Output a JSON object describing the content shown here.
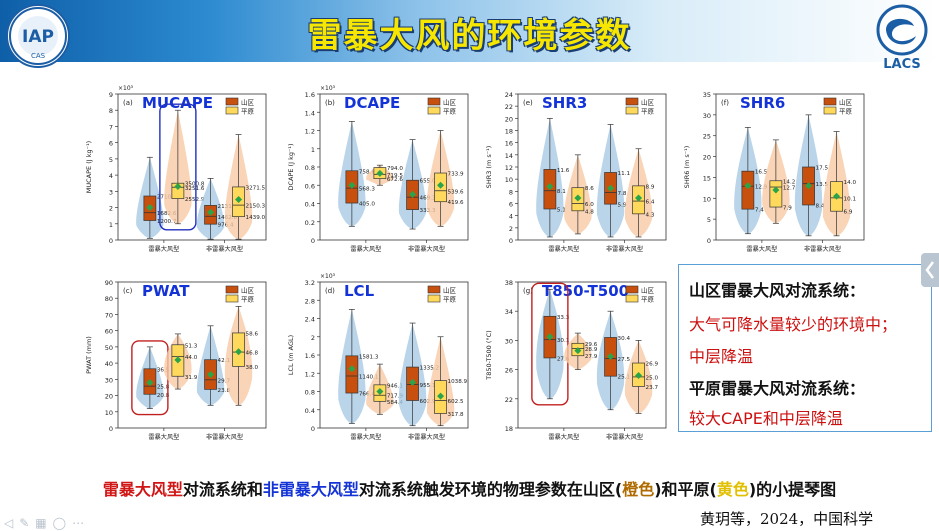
{
  "slide": {
    "title": "雷暴大风的环境参数",
    "logo_left_text": "IAP",
    "logo_left_sub": "CAS",
    "logo_right_text": "LACS",
    "caption_parts": [
      "雷暴大风型",
      "对流系统和",
      "非雷暴大风型",
      "对流系统触发环境的物理参数在山区(",
      "橙色",
      ")和平原(",
      "黄色",
      ")的小提琴图"
    ],
    "citation": "黄玥等，2024，中国科学"
  },
  "summary": {
    "mountain_heading": "山区雷暴大风对流系统：",
    "mountain_line1": "大气可降水量较少的环境中；",
    "mountain_line2": "中层降温",
    "plain_heading": "平原雷暴大风对流系统：",
    "plain_line1": "较大CAPE和中层降温"
  },
  "legend": {
    "mountain": "山区",
    "plain": "平原"
  },
  "colors": {
    "mountain": "#c8500f",
    "plain": "#ffd95c",
    "violin_left": "#a9c9e3",
    "violin_right": "#f8c9a4",
    "mean": "#2aa44a",
    "title_yellow": "#f6e600",
    "highlight_red": "#c02020",
    "highlight_blue": "#2030c0"
  },
  "chart_data": [
    {
      "type": "violin",
      "panel": "(a)",
      "title": "MUCAPE",
      "ylabel": "MUCAPE (J kg⁻¹)",
      "yscale_note": "×10³",
      "ylim": [
        0,
        9
      ],
      "yticks": [
        0,
        1,
        2,
        3,
        4,
        5,
        6,
        7,
        8,
        9
      ],
      "categories": [
        "雷暴大风型",
        "非雷暴大风型"
      ],
      "series": [
        {
          "name": "山区",
          "boxes": [
            {
              "q1": 1.2007,
              "median": 1.6826,
              "q3": 2.7109,
              "min": 0.1,
              "max": 5.1,
              "mean": 2.0
            },
            {
              "q1": 0.9764,
              "median": 1.4628,
              "q3": 2.1315,
              "min": 0.05,
              "max": 3.8,
              "mean": 1.7
            }
          ]
        },
        {
          "name": "平原",
          "boxes": [
            {
              "q1": 2.5529,
              "median": 3.2516,
              "q3": 3.5008,
              "min": 1.0,
              "max": 8.0,
              "mean": 3.3
            },
            {
              "q1": 1.439,
              "median": 2.1503,
              "q3": 3.2715,
              "min": 0.05,
              "max": 6.5,
              "mean": 2.5
            }
          ]
        }
      ],
      "labels": [
        "2710.8",
        "1682.6",
        "1200.7",
        "3500.8",
        "3251.6",
        "2552.9",
        "2131.5",
        "1462.8",
        "976.4",
        "3271.5",
        "2150.3",
        "1439.0"
      ]
    },
    {
      "type": "violin",
      "panel": "(b)",
      "title": "DCAPE",
      "ylabel": "DCAPE (J kg⁻¹)",
      "yscale_note": "×10³",
      "ylim": [
        0,
        1.6
      ],
      "yticks": [
        0,
        0.2,
        0.4,
        0.6,
        0.8,
        1.0,
        1.2,
        1.4,
        1.6
      ],
      "categories": [
        "雷暴大风型",
        "非雷暴大风型"
      ],
      "series": [
        {
          "name": "山区",
          "boxes": [
            {
              "q1": 0.405,
              "median": 0.5683,
              "q3": 0.7586,
              "min": 0.15,
              "max": 1.3,
              "mean": 0.6
            },
            {
              "q1": 0.3333,
              "median": 0.4693,
              "q3": 0.655,
              "min": 0.12,
              "max": 1.1,
              "mean": 0.5
            }
          ]
        },
        {
          "name": "平原",
          "boxes": [
            {
              "q1": 0.6726,
              "median": 0.7195,
              "q3": 0.794,
              "min": 0.6,
              "max": 0.82,
              "mean": 0.73
            },
            {
              "q1": 0.4196,
              "median": 0.5396,
              "q3": 0.7339,
              "min": 0.15,
              "max": 1.2,
              "mean": 0.6
            }
          ]
        }
      ],
      "labels": [
        "758.6",
        "568.3",
        "405.0",
        "794.0",
        "719.5",
        "672.6",
        "655.0",
        "469.3",
        "333.3",
        "733.9",
        "539.6",
        "419.6"
      ]
    },
    {
      "type": "violin",
      "panel": "(e)",
      "title": "SHR3",
      "ylabel": "SHR3 (m s⁻¹)",
      "ylim": [
        0,
        24
      ],
      "yticks": [
        0,
        2,
        4,
        6,
        8,
        10,
        12,
        14,
        16,
        18,
        20,
        22,
        24
      ],
      "categories": [
        "雷暴大风型",
        "非雷暴大风型"
      ],
      "series": [
        {
          "name": "山区",
          "boxes": [
            {
              "q1": 5.1,
              "median": 8.1,
              "q3": 11.6,
              "min": 0.5,
              "max": 20,
              "mean": 8.8
            },
            {
              "q1": 5.9,
              "median": 7.8,
              "q3": 11.1,
              "min": 0.5,
              "max": 19,
              "mean": 8.5
            }
          ]
        },
        {
          "name": "平原",
          "boxes": [
            {
              "q1": 4.8,
              "median": 6.0,
              "q3": 8.6,
              "min": 1.0,
              "max": 14,
              "mean": 6.9
            },
            {
              "q1": 4.3,
              "median": 6.4,
              "q3": 8.9,
              "min": 0.5,
              "max": 15,
              "mean": 6.9
            }
          ]
        }
      ],
      "labels": [
        "11.6",
        "8.1",
        "5.1",
        "8.6",
        "6.0",
        "4.8",
        "11.1",
        "7.8",
        "5.9",
        "8.9",
        "6.4",
        "4.3"
      ]
    },
    {
      "type": "violin",
      "panel": "(f)",
      "title": "SHR6",
      "ylabel": "SHR6 (m s⁻¹)",
      "ylim": [
        0,
        35
      ],
      "yticks": [
        0,
        5,
        10,
        15,
        20,
        25,
        30,
        35
      ],
      "categories": [
        "雷暴大风型",
        "非雷暴大风型"
      ],
      "series": [
        {
          "name": "山区",
          "boxes": [
            {
              "q1": 7.4,
              "median": 12.9,
              "q3": 16.5,
              "min": 1.5,
              "max": 27,
              "mean": 13
            },
            {
              "q1": 8.4,
              "median": 13.5,
              "q3": 17.5,
              "min": 1,
              "max": 30,
              "mean": 13
            }
          ]
        },
        {
          "name": "平原",
          "boxes": [
            {
              "q1": 7.9,
              "median": 12.7,
              "q3": 14.2,
              "min": 4,
              "max": 24,
              "mean": 12
            },
            {
              "q1": 6.9,
              "median": 10.1,
              "q3": 14.0,
              "min": 1,
              "max": 26,
              "mean": 10.5
            }
          ]
        }
      ],
      "labels": [
        "16.5",
        "12.9",
        "7.4",
        "14.2",
        "12.7",
        "7.9",
        "17.5",
        "13.5",
        "8.4",
        "14.0",
        "10.1",
        "6.9"
      ]
    },
    {
      "type": "violin",
      "panel": "(c)",
      "title": "PWAT",
      "ylabel": "PWAT (mm)",
      "ylim": [
        0,
        90
      ],
      "yticks": [
        0,
        10,
        20,
        30,
        40,
        50,
        60,
        70,
        80,
        90
      ],
      "categories": [
        "雷暴大风型",
        "非雷暴大风型"
      ],
      "series": [
        {
          "name": "山区",
          "boxes": [
            {
              "q1": 20.8,
              "median": 25.8,
              "q3": 36.5,
              "min": 12,
              "max": 50,
              "mean": 28
            },
            {
              "q1": 23.8,
              "median": 29.7,
              "q3": 42.1,
              "min": 14,
              "max": 63,
              "mean": 33
            }
          ]
        },
        {
          "name": "平原",
          "boxes": [
            {
              "q1": 31.9,
              "median": 44.0,
              "q3": 51.3,
              "min": 24,
              "max": 58,
              "mean": 42
            },
            {
              "q1": 38.0,
              "median": 46.8,
              "q3": 58.6,
              "min": 14,
              "max": 75,
              "mean": 47
            }
          ]
        }
      ],
      "labels": [
        "36.5",
        "25.8",
        "20.8",
        "51.3",
        "44.0",
        "31.9",
        "42.1",
        "29.7",
        "23.8",
        "58.6",
        "46.8",
        "38.0"
      ]
    },
    {
      "type": "violin",
      "panel": "(d)",
      "title": "LCL",
      "ylabel": "LCL (m AGL)",
      "yscale_note": "×10³",
      "ylim": [
        0,
        3.2
      ],
      "yticks": [
        0,
        0.4,
        0.8,
        1.2,
        1.6,
        2.0,
        2.4,
        2.8,
        3.2
      ],
      "categories": [
        "雷暴大风型",
        "非雷暴大风型"
      ],
      "series": [
        {
          "name": "山区",
          "boxes": [
            {
              "q1": 0.7664,
              "median": 1.1401,
              "q3": 1.5813,
              "min": 0.1,
              "max": 2.6,
              "mean": 1.3
            },
            {
              "q1": 0.6029,
              "median": 0.9551,
              "q3": 1.3352,
              "min": 0.05,
              "max": 2.3,
              "mean": 1.0
            }
          ]
        },
        {
          "name": "平原",
          "boxes": [
            {
              "q1": 0.5844,
              "median": 0.7179,
              "q3": 0.9461,
              "min": 0.3,
              "max": 1.4,
              "mean": 0.8
            },
            {
              "q1": 0.3178,
              "median": 0.6025,
              "q3": 1.0389,
              "min": 0.05,
              "max": 2.0,
              "mean": 0.7
            }
          ]
        }
      ],
      "labels": [
        "1581.3",
        "1140.1",
        "766.4",
        "946.1",
        "717.9",
        "584.4",
        "1335.2",
        "955.1",
        "602.9",
        "1038.9",
        "602.5",
        "317.8"
      ]
    },
    {
      "type": "violin",
      "panel": "(g)",
      "title": "T850-T500",
      "ylabel": "T850-T500 (°C)",
      "ylim": [
        18,
        38
      ],
      "yticks": [
        18,
        22,
        26,
        30,
        34,
        38
      ],
      "categories": [
        "雷暴大风型",
        "非雷暴大风型"
      ],
      "series": [
        {
          "name": "山区",
          "boxes": [
            {
              "q1": 27.6,
              "median": 30.1,
              "q3": 33.3,
              "min": 22,
              "max": 37,
              "mean": 30.5
            },
            {
              "q1": 25.1,
              "median": 27.5,
              "q3": 30.4,
              "min": 20.5,
              "max": 34,
              "mean": 27.8
            }
          ]
        },
        {
          "name": "平原",
          "boxes": [
            {
              "q1": 27.9,
              "median": 28.9,
              "q3": 29.6,
              "min": 26,
              "max": 31,
              "mean": 28.6
            },
            {
              "q1": 23.7,
              "median": 25.0,
              "q3": 26.9,
              "min": 20,
              "max": 30,
              "mean": 25.2
            }
          ]
        }
      ],
      "labels": [
        "33.3",
        "30.1",
        "27.6",
        "29.6",
        "28.9",
        "27.9",
        "30.4",
        "27.5",
        "25.1",
        "26.9",
        "25.0",
        "23.7"
      ]
    }
  ]
}
